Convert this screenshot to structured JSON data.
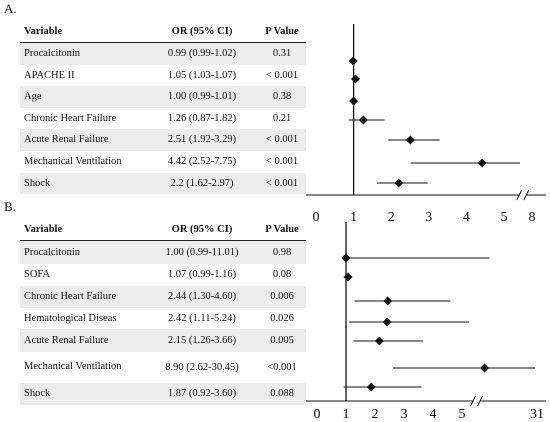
{
  "chart_data": [
    {
      "type": "forest",
      "panel": "A.",
      "headers": [
        "Variable",
        "OR (95% CI)",
        "P Value"
      ],
      "rows": [
        {
          "variable": "Procalcitonin",
          "or_ci": "0.99 (0.99-1.02)",
          "p": "0.31",
          "or": 0.99,
          "lo": 0.99,
          "hi": 1.02
        },
        {
          "variable": "APACHE II",
          "or_ci": "1.05 (1.03-1.07)",
          "p": "< 0.001",
          "or": 1.05,
          "lo": 1.03,
          "hi": 1.07
        },
        {
          "variable": "Age",
          "or_ci": "1.00 (0.99-1.01)",
          "p": "0.38",
          "or": 1.0,
          "lo": 0.99,
          "hi": 1.01
        },
        {
          "variable": "Chronic Heart Failure",
          "or_ci": "1.26 (0.87-1.82)",
          "p": "0.21",
          "or": 1.26,
          "lo": 0.87,
          "hi": 1.82
        },
        {
          "variable": "Acute Renal Failure",
          "or_ci": "2.51 (1.92-3.29)",
          "p": "< 0.001",
          "or": 2.51,
          "lo": 1.92,
          "hi": 3.29
        },
        {
          "variable": "Mechanical Ventilation",
          "or_ci": "4.42 (2.52-7.75)",
          "p": "< 0.001",
          "or": 4.42,
          "lo": 2.52,
          "hi": 7.75
        },
        {
          "variable": "Shock",
          "or_ci": "2.2 (1.62-2.97)",
          "p": "< 0.001",
          "or": 2.2,
          "lo": 1.62,
          "hi": 2.97
        }
      ],
      "x_ticks": [
        "0",
        "1",
        "2",
        "3",
        "4",
        "5",
        "8"
      ],
      "x_break_after": 5,
      "reference_line": 1
    },
    {
      "type": "forest",
      "panel": "B.",
      "headers": [
        "Variable",
        "OR (95% CI)",
        "P Value"
      ],
      "rows": [
        {
          "variable": "Procalcitonin",
          "or_ci": "1.00 (0.99-11.01)",
          "p": "0.98",
          "or": 1.0,
          "lo": 0.99,
          "hi": 11.01
        },
        {
          "variable": "SOFA",
          "or_ci": "1.07 (0.99-1.16)",
          "p": "0.08",
          "or": 1.07,
          "lo": 0.99,
          "hi": 1.16
        },
        {
          "variable": "Chronic Heart Failure",
          "or_ci": "2.44 (1.30-4.60)",
          "p": "0.006",
          "or": 2.44,
          "lo": 1.3,
          "hi": 4.6
        },
        {
          "variable": "Hematological Diseas",
          "or_ci": "2.42 (1.11-5.24)",
          "p": "0.026",
          "or": 2.42,
          "lo": 1.11,
          "hi": 5.24
        },
        {
          "variable": "Acute Renal Failure",
          "or_ci": "2.15 (1.26-3.66)",
          "p": "0.005",
          "or": 2.15,
          "lo": 1.26,
          "hi": 3.66
        },
        {
          "variable": "Mechanical Ventilation",
          "or_ci": "8.90 (2.62-30.45)",
          "p": "<0.001",
          "or": 8.9,
          "lo": 2.62,
          "hi": 30.45
        },
        {
          "variable": "Shock",
          "or_ci": "1.87 (0.92-3.60)",
          "p": "0.088",
          "or": 1.87,
          "lo": 0.92,
          "hi": 3.6
        }
      ],
      "x_ticks": [
        "0",
        "1",
        "2",
        "3",
        "4",
        "5",
        "31"
      ],
      "x_break_after": 5,
      "reference_line": 1
    }
  ]
}
